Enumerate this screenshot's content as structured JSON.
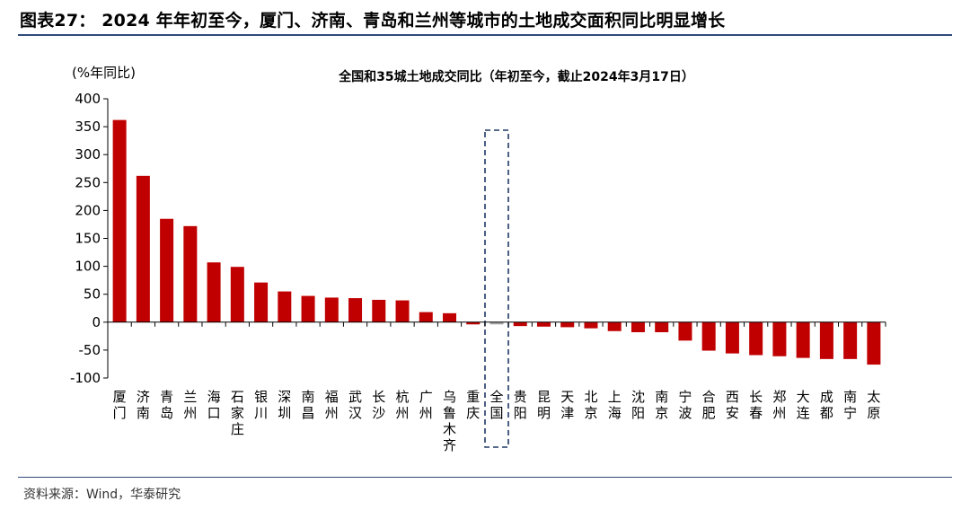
{
  "figure_title": "图表27：  2024 年年初至今，厦门、济南、青岛和兰州等城市的土地成交面积同比明显增长",
  "source": "资料来源：Wind，华泰研究",
  "colors": {
    "bar": "#c00000",
    "highlight_bar": "#a6a6a6",
    "rule": "#2f4a7a",
    "dashed_box": "#1f3864"
  },
  "chart_data": {
    "type": "bar",
    "title": "全国和35城土地成交同比（年初至今，截止2024年3月17日）",
    "ylabel": "(%年同比)",
    "xlabel": "",
    "ylim": [
      -100,
      400
    ],
    "yticks": [
      -100,
      -50,
      0,
      50,
      100,
      150,
      200,
      250,
      300,
      350,
      400
    ],
    "grid": false,
    "highlight": "全国",
    "categories": [
      "厦门",
      "济南",
      "青岛",
      "兰州",
      "海口",
      "石家庄",
      "银川",
      "深圳",
      "南昌",
      "福州",
      "武汉",
      "长沙",
      "杭州",
      "广州",
      "乌鲁木齐",
      "重庆",
      "全国",
      "贵阳",
      "昆明",
      "天津",
      "北京",
      "上海",
      "沈阳",
      "南京",
      "宁波",
      "合肥",
      "西安",
      "长春",
      "郑州",
      "大连",
      "成都",
      "南宁",
      "太原"
    ],
    "values": [
      362,
      262,
      185,
      172,
      107,
      99,
      71,
      55,
      47,
      44,
      43,
      40,
      39,
      18,
      16,
      -4,
      -4,
      -7,
      -8,
      -9,
      -11,
      -16,
      -18,
      -18,
      -33,
      -51,
      -56,
      -59,
      -61,
      -64,
      -66,
      -66,
      -76
    ]
  }
}
